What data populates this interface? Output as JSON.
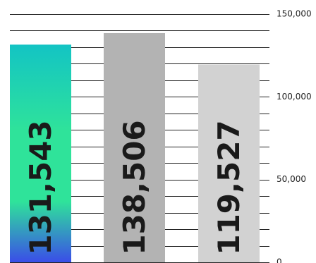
{
  "chart_data": {
    "type": "bar",
    "categories": [
      "",
      "",
      ""
    ],
    "values": [
      131543,
      138506,
      119527
    ],
    "data_labels": [
      "131,543",
      "138,506",
      "119,527"
    ],
    "ylim": [
      0,
      150000
    ],
    "y_ticks": [
      {
        "value": 0,
        "label": "0"
      },
      {
        "value": 50000,
        "label": "50,000"
      },
      {
        "value": 100000,
        "label": "100,000"
      },
      {
        "value": 150000,
        "label": "150,000"
      }
    ],
    "y_axis_side": "right",
    "grid": true,
    "bar_colors": [
      {
        "gradient_top": "#13c4c4",
        "gradient_mid": "#2fe39a",
        "gradient_bottom": "#3a4de8"
      },
      {
        "fill": "#b3b3b3"
      },
      {
        "fill": "#d2d2d2"
      }
    ],
    "grid_color": "#222222"
  }
}
